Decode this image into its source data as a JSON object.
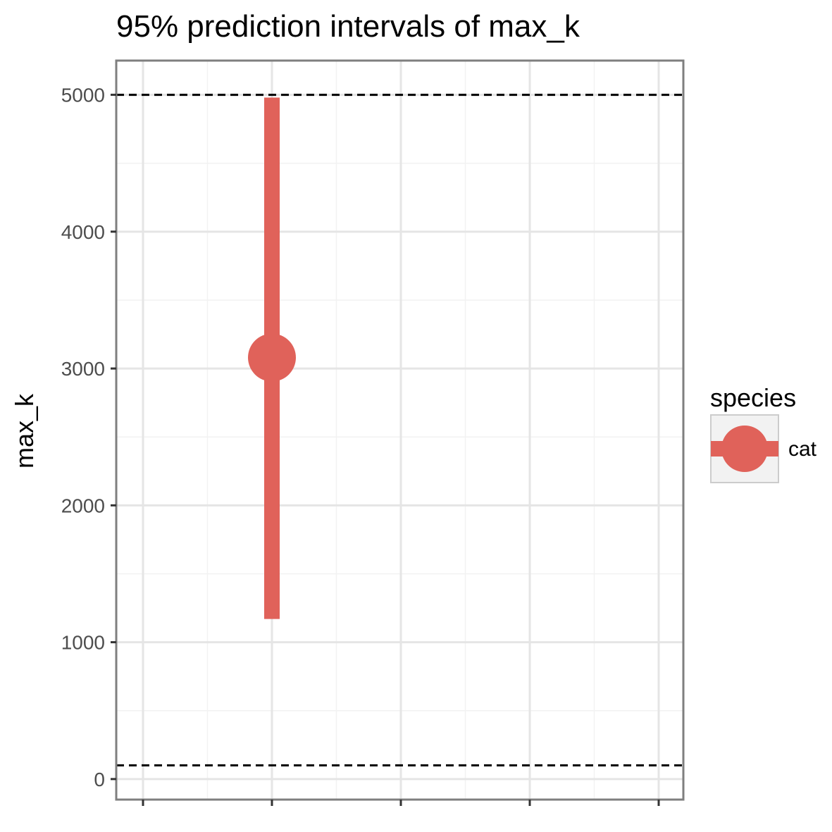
{
  "chart_data": {
    "type": "pointrange",
    "title": "95% prediction intervals of max_k",
    "ylabel": "max_k",
    "xlabel": "",
    "ylim": [
      -150,
      5250
    ],
    "yticks": [
      0,
      1000,
      2000,
      3000,
      4000,
      5000
    ],
    "ytick_labels": [
      "0",
      "1000",
      "2000",
      "3000",
      "4000",
      "5000"
    ],
    "x_ticks": 5,
    "grid": true,
    "reference_lines": [
      {
        "y": 5000,
        "style": "dashed",
        "color": "#000000"
      },
      {
        "y": 100,
        "style": "dashed",
        "color": "#000000"
      }
    ],
    "series": [
      {
        "name": "cat",
        "color": "#e0625a",
        "x_index": 1,
        "estimate": 3080,
        "lower": 1170,
        "upper": 4980
      }
    ],
    "legend": {
      "title": "species",
      "position": "right",
      "entries": [
        "cat"
      ]
    }
  }
}
